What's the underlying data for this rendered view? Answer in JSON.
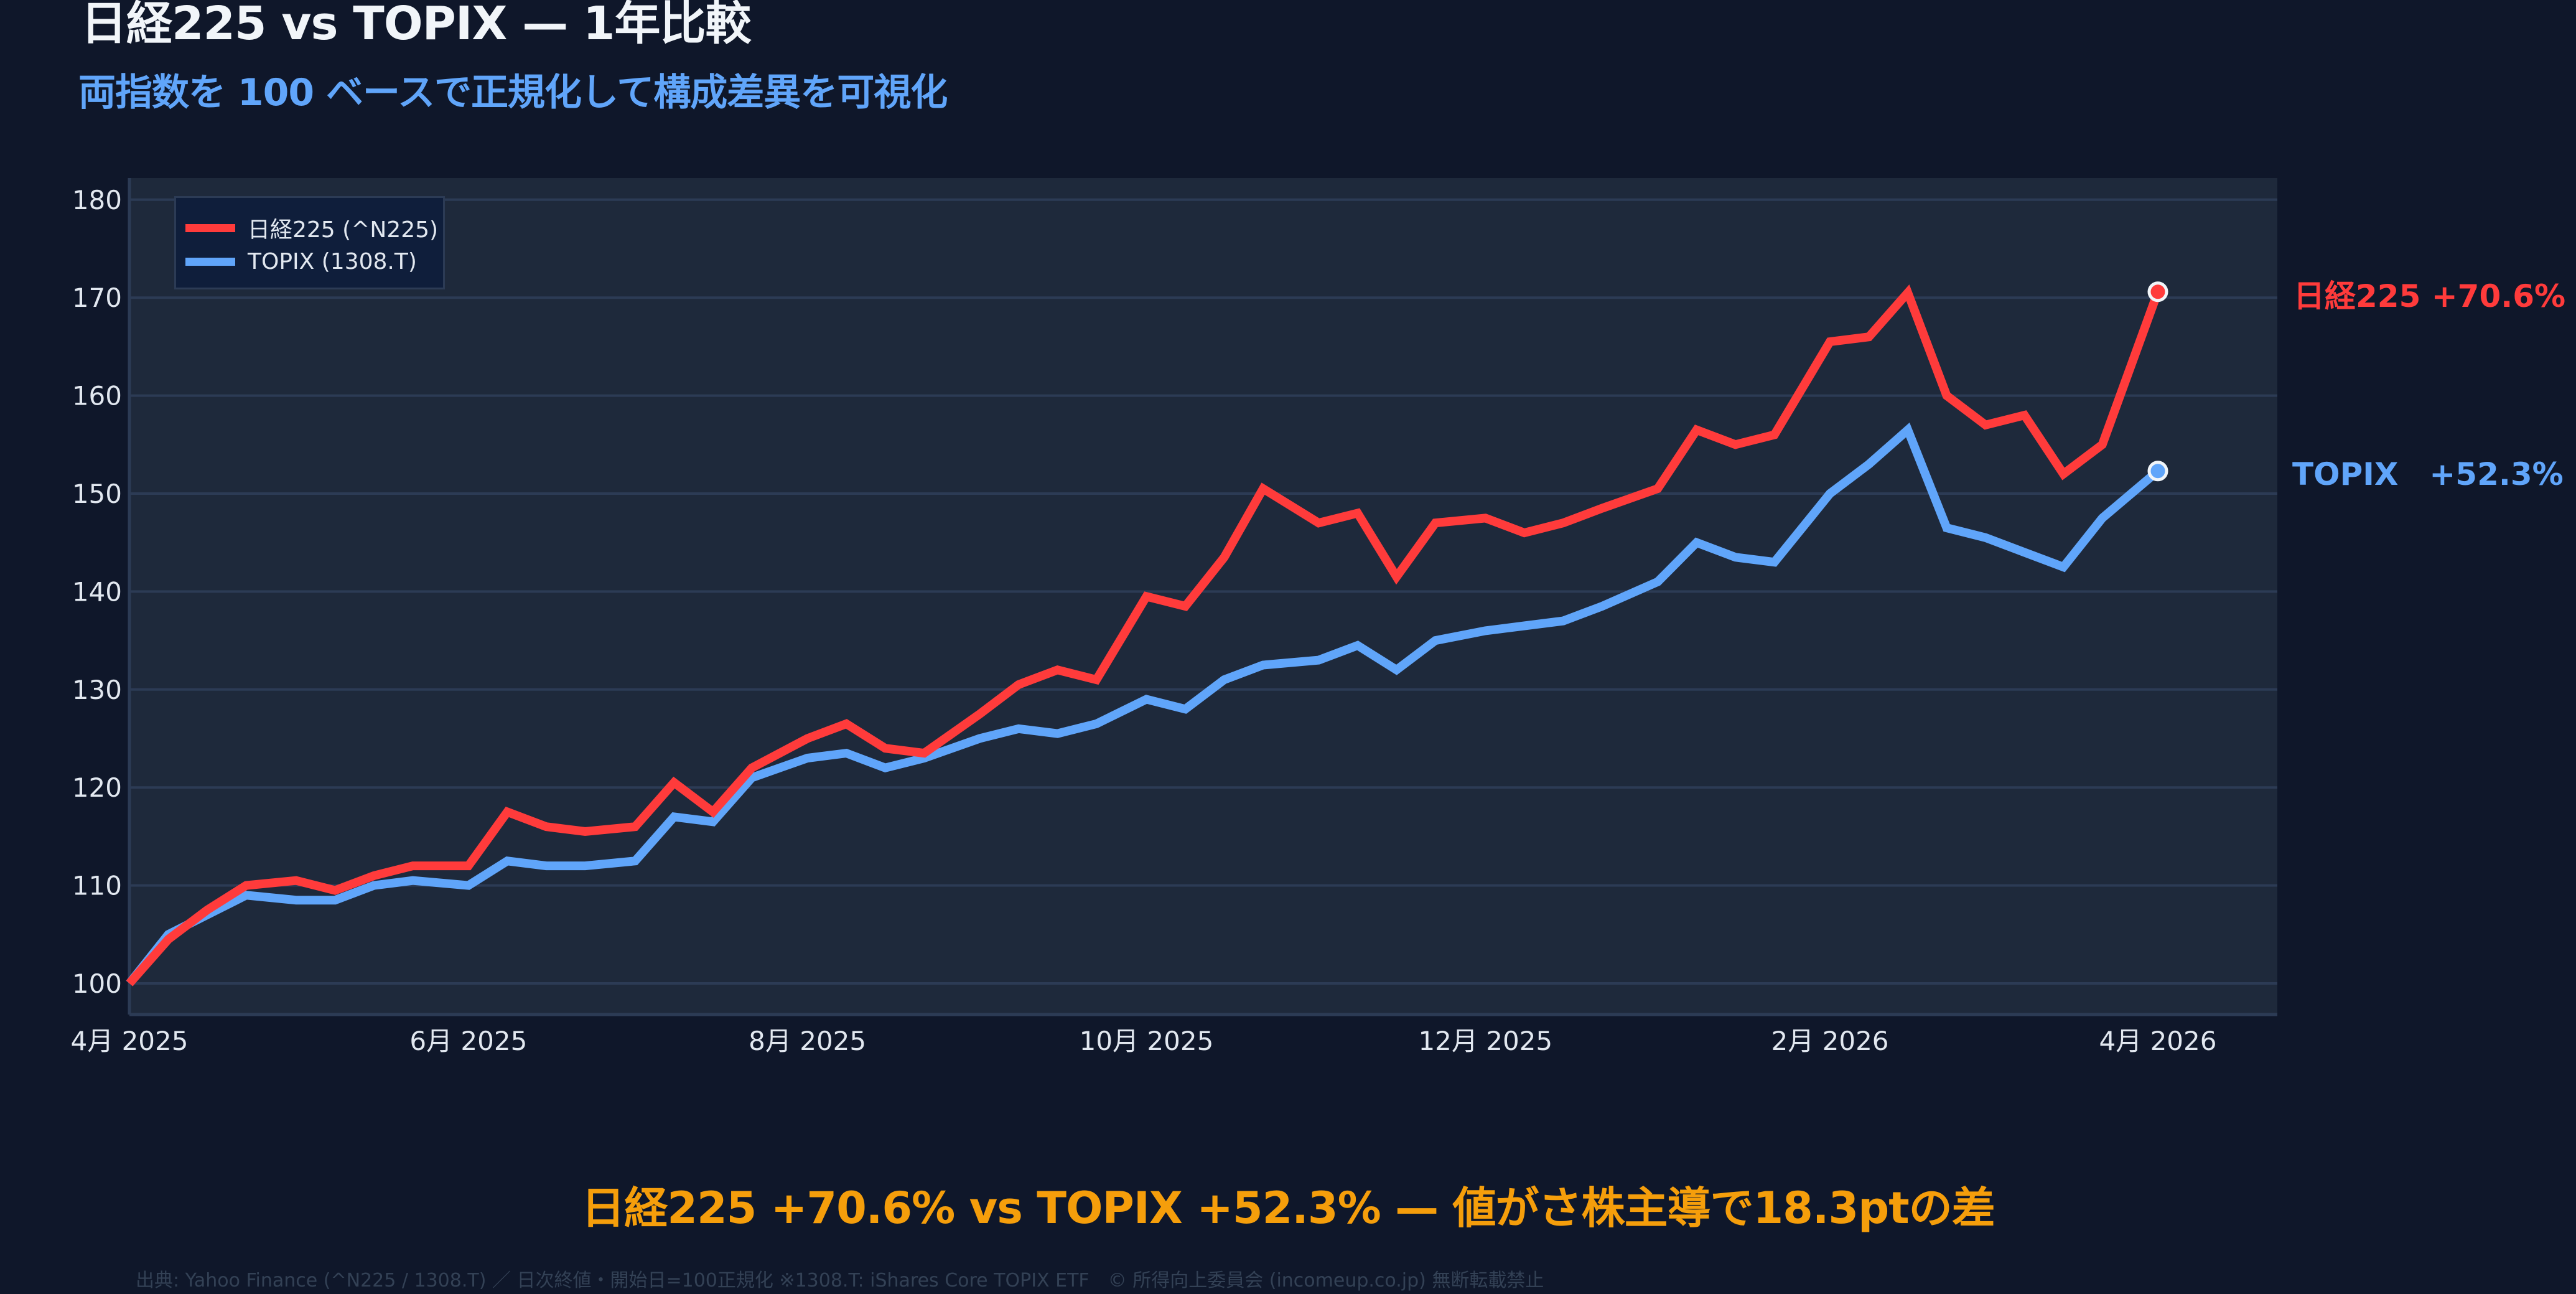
{
  "header": {
    "title": "日経225 vs TOPIX — 1年比較",
    "subtitle": "両指数を 100 ベースで正規化して構成差異を可視化"
  },
  "colors": {
    "background": "#0f172a",
    "plot_background": "#1e293b",
    "grid": "#2c3b55",
    "nikkei": "#ff3b3b",
    "topix": "#60a5fa",
    "headline": "#f59e0b",
    "footer": "#334155"
  },
  "legend": {
    "items": [
      {
        "label": "日経225 (^N225)",
        "color": "#ff3b3b"
      },
      {
        "label": "TOPIX (1308.T)",
        "color": "#60a5fa"
      }
    ]
  },
  "end_labels": {
    "nikkei": "日経225 +70.6%",
    "topix": "TOPIX　+52.3%"
  },
  "headline": "日経225 +70.6% vs TOPIX +52.3% — 値がさ株主導で18.3ptの差",
  "footer": "出典: Yahoo Finance (^N225 / 1308.T) ／ 日次終値・開始日=100正規化 ※1308.T: iShares Core TOPIX ETF　© 所得向上委員会 (incomeup.co.jp) 無断転載禁止",
  "chart_data": {
    "type": "line",
    "title": "日経225 vs TOPIX — 1年比較",
    "subtitle": "両指数を 100 ベースで正規化して構成差異を可視化",
    "xlabel": "",
    "ylabel": "",
    "ylim": [
      97,
      182
    ],
    "yticks": [
      100,
      110,
      120,
      130,
      140,
      150,
      160,
      170,
      180
    ],
    "xticks": [
      "4月 2025",
      "6月 2025",
      "8月 2025",
      "10月 2025",
      "12月 2025",
      "2月 2026",
      "4月 2026"
    ],
    "grid": true,
    "legend_position": "upper left",
    "x": [
      "2025-04-01",
      "2025-04-08",
      "2025-04-15",
      "2025-04-22",
      "2025-05-01",
      "2025-05-08",
      "2025-05-15",
      "2025-05-22",
      "2025-06-01",
      "2025-06-08",
      "2025-06-15",
      "2025-06-22",
      "2025-07-01",
      "2025-07-08",
      "2025-07-15",
      "2025-07-22",
      "2025-08-01",
      "2025-08-08",
      "2025-08-15",
      "2025-08-22",
      "2025-09-01",
      "2025-09-08",
      "2025-09-15",
      "2025-09-22",
      "2025-10-01",
      "2025-10-08",
      "2025-10-15",
      "2025-10-22",
      "2025-11-01",
      "2025-11-08",
      "2025-11-15",
      "2025-11-22",
      "2025-12-01",
      "2025-12-08",
      "2025-12-15",
      "2025-12-22",
      "2026-01-01",
      "2026-01-08",
      "2026-01-15",
      "2026-01-22",
      "2026-02-01",
      "2026-02-08",
      "2026-02-15",
      "2026-02-22",
      "2026-03-01",
      "2026-03-08",
      "2026-03-15",
      "2026-03-22",
      "2026-04-01"
    ],
    "series": [
      {
        "name": "日経225 (^N225)",
        "color": "#ff3b3b",
        "values": [
          100,
          104.5,
          107.5,
          110,
          110.5,
          109.5,
          111,
          112,
          112,
          117.5,
          116,
          115.5,
          116,
          120.5,
          117.5,
          122,
          125,
          126.5,
          124,
          123.5,
          127.5,
          130.5,
          132,
          131,
          139.5,
          138.5,
          143.5,
          150.5,
          147,
          148,
          141.5,
          147,
          147.5,
          146,
          147,
          148.5,
          150.5,
          156.5,
          155,
          156,
          165.5,
          166,
          170.5,
          160,
          157,
          158,
          152,
          155,
          170.6
        ]
      },
      {
        "name": "TOPIX (1308.T)",
        "color": "#60a5fa",
        "values": [
          100,
          105,
          107,
          109,
          108.5,
          108.5,
          110,
          110.5,
          110,
          112.5,
          112,
          112,
          112.5,
          117,
          116.5,
          121,
          123,
          123.5,
          122,
          123,
          125,
          126,
          125.5,
          126.5,
          129,
          128,
          131,
          132.5,
          133,
          134.5,
          132,
          135,
          136,
          136.5,
          137,
          138.5,
          141,
          145,
          143.5,
          143,
          150,
          153,
          156.5,
          146.5,
          145.5,
          144,
          142.5,
          147.5,
          152.3
        ]
      }
    ],
    "end_values": {
      "nikkei": 70.6,
      "topix": 52.3,
      "gap_pt": 18.3
    }
  }
}
